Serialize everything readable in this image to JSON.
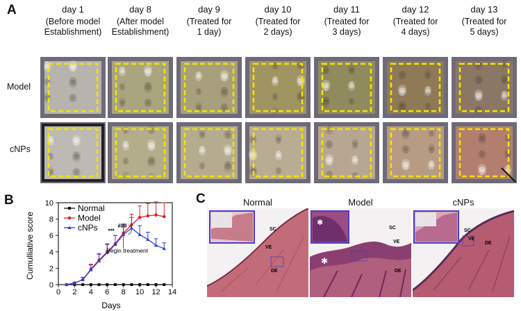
{
  "figure": {
    "panel_a": {
      "letter": "A",
      "columns": [
        {
          "day": "day 1",
          "desc1": "(Before model",
          "desc2": "Establishment)",
          "model_fill": "#b7b4ae",
          "cnps_fill": "#bdb9b3"
        },
        {
          "day": "day 8",
          "desc1": "(After model",
          "desc2": "Establishment)",
          "model_fill": "#a9a57f",
          "cnps_fill": "#b3ad8c"
        },
        {
          "day": "day 9",
          "desc1": "(Treated for",
          "desc2": "1 day)",
          "model_fill": "#a8a07c",
          "cnps_fill": "#b5ab8f"
        },
        {
          "day": "day 10",
          "desc1": "(Treated for",
          "desc2": "2 days)",
          "model_fill": "#a19463",
          "cnps_fill": "#b8ac92"
        },
        {
          "day": "day 11",
          "desc1": "(Treated for",
          "desc2": "3 days)",
          "model_fill": "#918a5e",
          "cnps_fill": "#b7a792"
        },
        {
          "day": "day 12",
          "desc1": "(Treated for",
          "desc2": "4 days)",
          "model_fill": "#8e7a57",
          "cnps_fill": "#b79b83"
        },
        {
          "day": "day 13",
          "desc1": "(Treated for",
          "desc2": "5 days)",
          "model_fill": "#8a7764",
          "cnps_fill": "#b27f6f"
        }
      ],
      "rows": [
        "Model",
        "cNPs"
      ],
      "dash_color": "#f2e600"
    },
    "panel_b": {
      "letter": "B"
    },
    "panel_c": {
      "letter": "C",
      "titles": [
        "Normal",
        "Model",
        "cNPs"
      ],
      "tissue_color": "#c06a78",
      "inset_border": "#4b3cc8",
      "labels": {
        "normal": [
          "SC",
          "VE",
          "DE"
        ],
        "model": [
          "SC",
          "VE",
          "DE"
        ],
        "cnps": [
          "SC",
          "VE",
          "DE"
        ]
      }
    }
  },
  "chart_data": {
    "type": "line",
    "xlabel": "Days",
    "ylabel": "Cumulliative score",
    "xlim": [
      0,
      14
    ],
    "ylim": [
      0,
      10
    ],
    "xticks": [
      "0",
      "2",
      "4",
      "6",
      "8",
      "10",
      "12",
      "14"
    ],
    "yticks": [
      "0",
      "2",
      "4",
      "6",
      "8",
      "10"
    ],
    "legend_position": "top-left",
    "annotation": "Begin treatment",
    "significance": [
      "***",
      "###"
    ],
    "series": [
      {
        "name": "Normal",
        "color": "#111111",
        "marker": "square",
        "x": [
          1,
          2,
          3,
          4,
          5,
          6,
          7,
          8,
          9,
          10,
          11,
          12,
          13
        ],
        "y": [
          0,
          0,
          0,
          0,
          0,
          0,
          0,
          0,
          0,
          0,
          0,
          0,
          0
        ],
        "err": [
          0,
          0,
          0,
          0,
          0,
          0,
          0,
          0,
          0,
          0,
          0,
          0,
          0
        ]
      },
      {
        "name": "Model",
        "color": "#e0202a",
        "marker": "circle",
        "x": [
          1,
          2,
          3,
          4,
          5,
          6,
          7,
          8,
          9,
          10,
          11,
          12,
          13
        ],
        "y": [
          0,
          0.2,
          0.6,
          1.9,
          3.0,
          4.0,
          5.0,
          6.3,
          7.3,
          8.2,
          8.4,
          8.5,
          8.3
        ],
        "err": [
          0,
          0.1,
          0.3,
          0.6,
          0.8,
          1.0,
          1.0,
          1.1,
          1.3,
          1.4,
          1.5,
          1.6,
          1.7
        ]
      },
      {
        "name": "cNPs",
        "color": "#2a3fd8",
        "marker": "triangle",
        "x": [
          1,
          2,
          3,
          4,
          5,
          6,
          7,
          8,
          9,
          10,
          11,
          12,
          13
        ],
        "y": [
          0,
          0.2,
          0.6,
          1.8,
          2.9,
          3.9,
          4.9,
          6.1,
          6.9,
          6.1,
          5.5,
          4.8,
          4.4
        ],
        "err": [
          0,
          0.1,
          0.3,
          0.6,
          0.8,
          1.0,
          1.1,
          1.2,
          1.3,
          1.1,
          0.9,
          0.8,
          0.7
        ]
      }
    ]
  }
}
